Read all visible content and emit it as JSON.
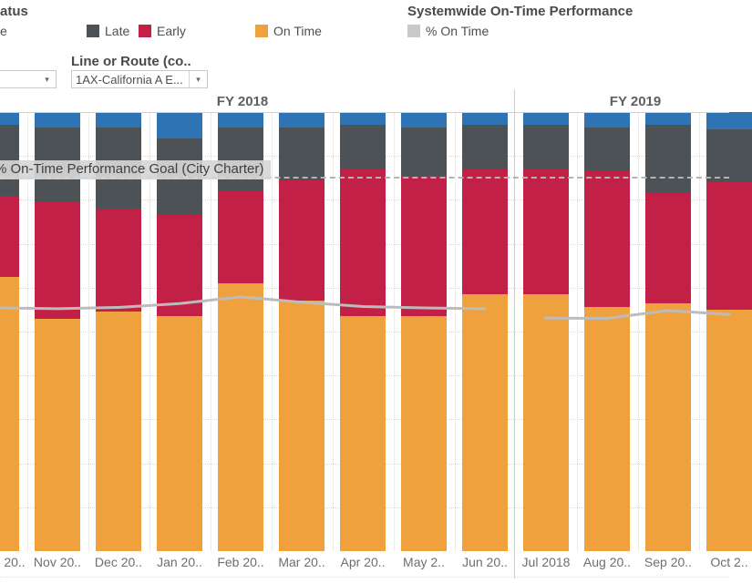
{
  "header": {
    "status_title": "atus",
    "status_legend": [
      {
        "label": "e",
        "color": "#2e74b5"
      },
      {
        "label": "Late",
        "color": "#4d5257"
      },
      {
        "label": "Early",
        "color": "#c32048"
      },
      {
        "label": "On Time",
        "color": "#eea13d"
      }
    ],
    "right_title": "Systemwide On-Time Performance",
    "right_legend": {
      "label": "% On Time",
      "color": "#c9c9c9"
    },
    "filter_label": "Line or Route (co..",
    "filter_value": "1AX-California A E..."
  },
  "icons": {
    "dropdown_arrow": "▾"
  },
  "chart_data": {
    "type": "bar",
    "subtype": "stacked-percent-columns-with-line-overlay",
    "title": "Systemwide On-Time Performance",
    "ylim": [
      0,
      100
    ],
    "grid": "dotted every 10%",
    "fiscal_years": [
      {
        "label": "FY 2018",
        "months": 9
      },
      {
        "label": "FY 2019",
        "months": 4
      }
    ],
    "categories": [
      "20..",
      "Nov 20..",
      "Dec 20..",
      "Jan 20..",
      "Feb 20..",
      "Mar 20..",
      "Apr 20..",
      "May 2..",
      "Jun 20..",
      "Jul 2018",
      "Aug 20..",
      "Sep 20..",
      "Oct 2.."
    ],
    "series": [
      {
        "name": "On Time",
        "color": "#eea13d",
        "values": [
          62.5,
          53.0,
          54.5,
          53.5,
          61.0,
          57.0,
          53.5,
          53.5,
          58.5,
          58.5,
          55.5,
          56.5,
          55.0
        ]
      },
      {
        "name": "Early",
        "color": "#c32048",
        "values": [
          18.5,
          26.5,
          23.5,
          23.0,
          21.0,
          27.5,
          33.5,
          32.0,
          28.5,
          28.5,
          31.0,
          25.0,
          29.0
        ]
      },
      {
        "name": "Late",
        "color": "#4d5257",
        "values": [
          16.0,
          17.0,
          18.5,
          17.5,
          14.5,
          12.0,
          10.0,
          11.0,
          10.0,
          10.0,
          10.0,
          15.5,
          12.0
        ]
      },
      {
        "name": "e",
        "color": "#2e74b5",
        "values": [
          3.0,
          3.5,
          3.5,
          6.0,
          3.5,
          3.5,
          3.0,
          3.5,
          3.0,
          3.0,
          3.5,
          3.0,
          4.0
        ]
      }
    ],
    "line": {
      "name": "% On Time",
      "color": "#bcbcbc",
      "segments": [
        [
          55.4,
          55.2,
          55.5,
          56.4,
          57.9,
          56.7,
          55.7,
          55.4,
          55.2
        ],
        [
          53.1,
          53.0,
          54.8,
          53.9
        ]
      ]
    },
    "reference_line": {
      "value": 85,
      "label": "% On-Time Performance Goal (City Charter)"
    }
  }
}
